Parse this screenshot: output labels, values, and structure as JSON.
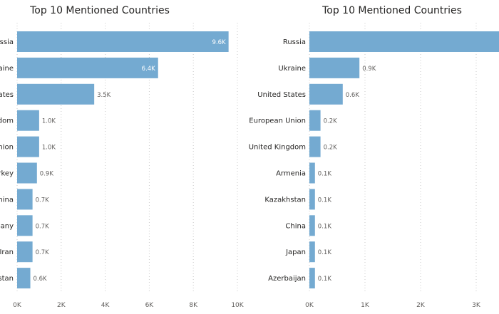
{
  "chart_data": [
    {
      "type": "bar",
      "orientation": "horizontal",
      "title": "Top 10 Mentioned Countries",
      "categories": [
        "Russia",
        "Ukraine",
        "United States",
        "United Kingdom",
        "European Union",
        "Turkey",
        "China",
        "Germany",
        "Iran",
        "Kazakhstan"
      ],
      "visible_category_labels": [
        "ussia",
        "kraine",
        "tates",
        "gdom",
        "Jnion",
        "rkey",
        "hina",
        "many",
        "Iran",
        "kstan"
      ],
      "values": [
        9600,
        6400,
        3500,
        1000,
        1000,
        900,
        700,
        700,
        700,
        600
      ],
      "data_labels": [
        "9.6K",
        "6.4K",
        "3.5K",
        "1.0K",
        "1.0K",
        "0.9K",
        "0.7K",
        "0.7K",
        "0.7K",
        "0.6K"
      ],
      "xlim": [
        0,
        10000
      ],
      "xticks": [
        0,
        2000,
        4000,
        6000,
        8000,
        10000
      ],
      "xtick_labels": [
        "0K",
        "2K",
        "4K",
        "6K",
        "8K",
        "10K"
      ],
      "grid": true,
      "bar_color": "#74aad1"
    },
    {
      "type": "bar",
      "orientation": "horizontal",
      "title": "Top 10 Mentioned Countries",
      "categories": [
        "Russia",
        "Ukraine",
        "United States",
        "European Union",
        "United Kingdom",
        "Armenia",
        "Kazakhstan",
        "China",
        "Japan",
        "Azerbaijan"
      ],
      "values": [
        3500,
        900,
        600,
        200,
        200,
        100,
        100,
        100,
        100,
        100
      ],
      "data_labels": [
        "",
        "0.9K",
        "0.6K",
        "0.2K",
        "0.2K",
        "0.1K",
        "0.1K",
        "0.1K",
        "0.1K",
        "0.1K"
      ],
      "xlim": [
        0,
        3000
      ],
      "xticks": [
        0,
        1000,
        2000,
        3000
      ],
      "xtick_labels": [
        "0K",
        "1K",
        "2K",
        "3K"
      ],
      "grid": true,
      "bar_color": "#74aad1"
    }
  ]
}
